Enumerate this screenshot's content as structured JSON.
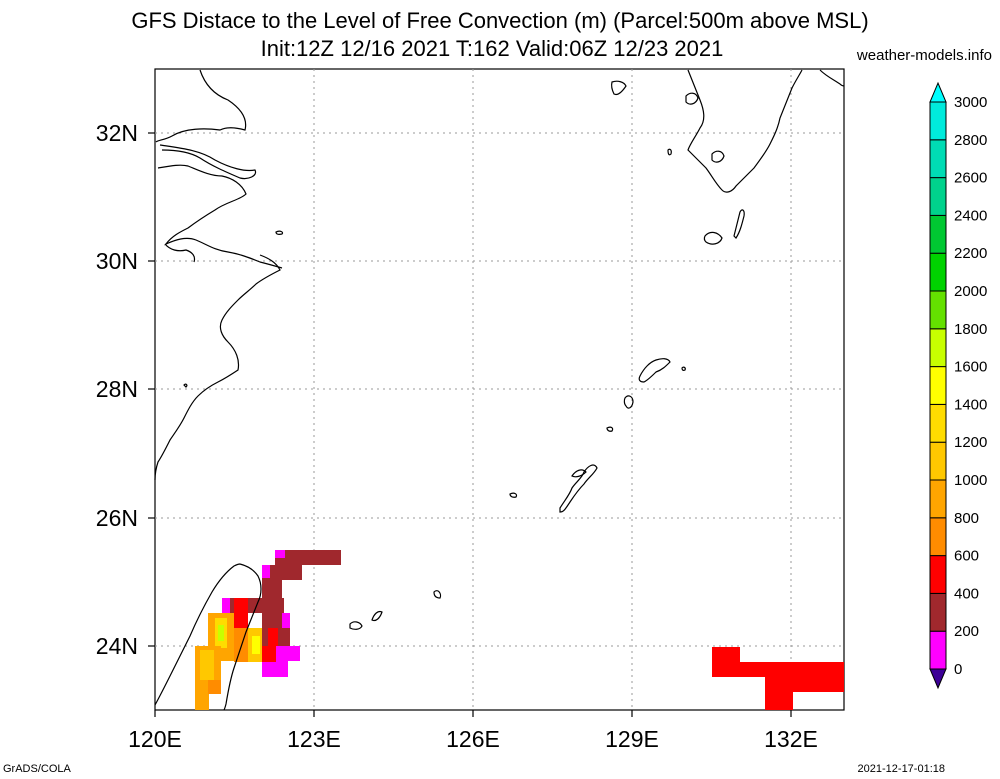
{
  "header": {
    "title_line1": "GFS Distace to the Level of Free Convection (m) (Parcel:500m above MSL)",
    "title_line2": "Init:12Z 12/16 2021 T:162 Valid:06Z 12/23 2021",
    "site": "weather-models.info"
  },
  "footer": {
    "left": "GrADS/COLA",
    "right": "2021-12-17-01:18"
  },
  "axes": {
    "lat_labels": [
      "32N",
      "30N",
      "28N",
      "26N",
      "24N"
    ],
    "lon_labels": [
      "120E",
      "123E",
      "126E",
      "129E",
      "132E"
    ]
  },
  "colorbar": {
    "labels": [
      "0",
      "200",
      "400",
      "600",
      "800",
      "1000",
      "1200",
      "1400",
      "1600",
      "1800",
      "2000",
      "2200",
      "2400",
      "2600",
      "2800",
      "3000"
    ],
    "colors": [
      "#3c0096",
      "#ff00ff",
      "#a0282d",
      "#ff0000",
      "#ff8c00",
      "#ffa500",
      "#ffc800",
      "#ffdc00",
      "#ffff00",
      "#c8ff00",
      "#64e100",
      "#00d200",
      "#00c832",
      "#00d28c",
      "#00dcb4",
      "#00ebdc",
      "#00ffff"
    ]
  },
  "map_data": {
    "field": "LFC distance (m)",
    "lon_range": [
      120,
      133
    ],
    "lat_range": [
      23,
      33
    ],
    "regions": [
      {
        "area": "NE Taiwan offshore",
        "class": "200-400"
      },
      {
        "area": "East of Taiwan",
        "class": "400-600"
      },
      {
        "area": "Taiwan central mountains",
        "class": "800-1600"
      },
      {
        "area": "SE corner 131-133E 23-24N",
        "class": "400-600"
      }
    ]
  }
}
